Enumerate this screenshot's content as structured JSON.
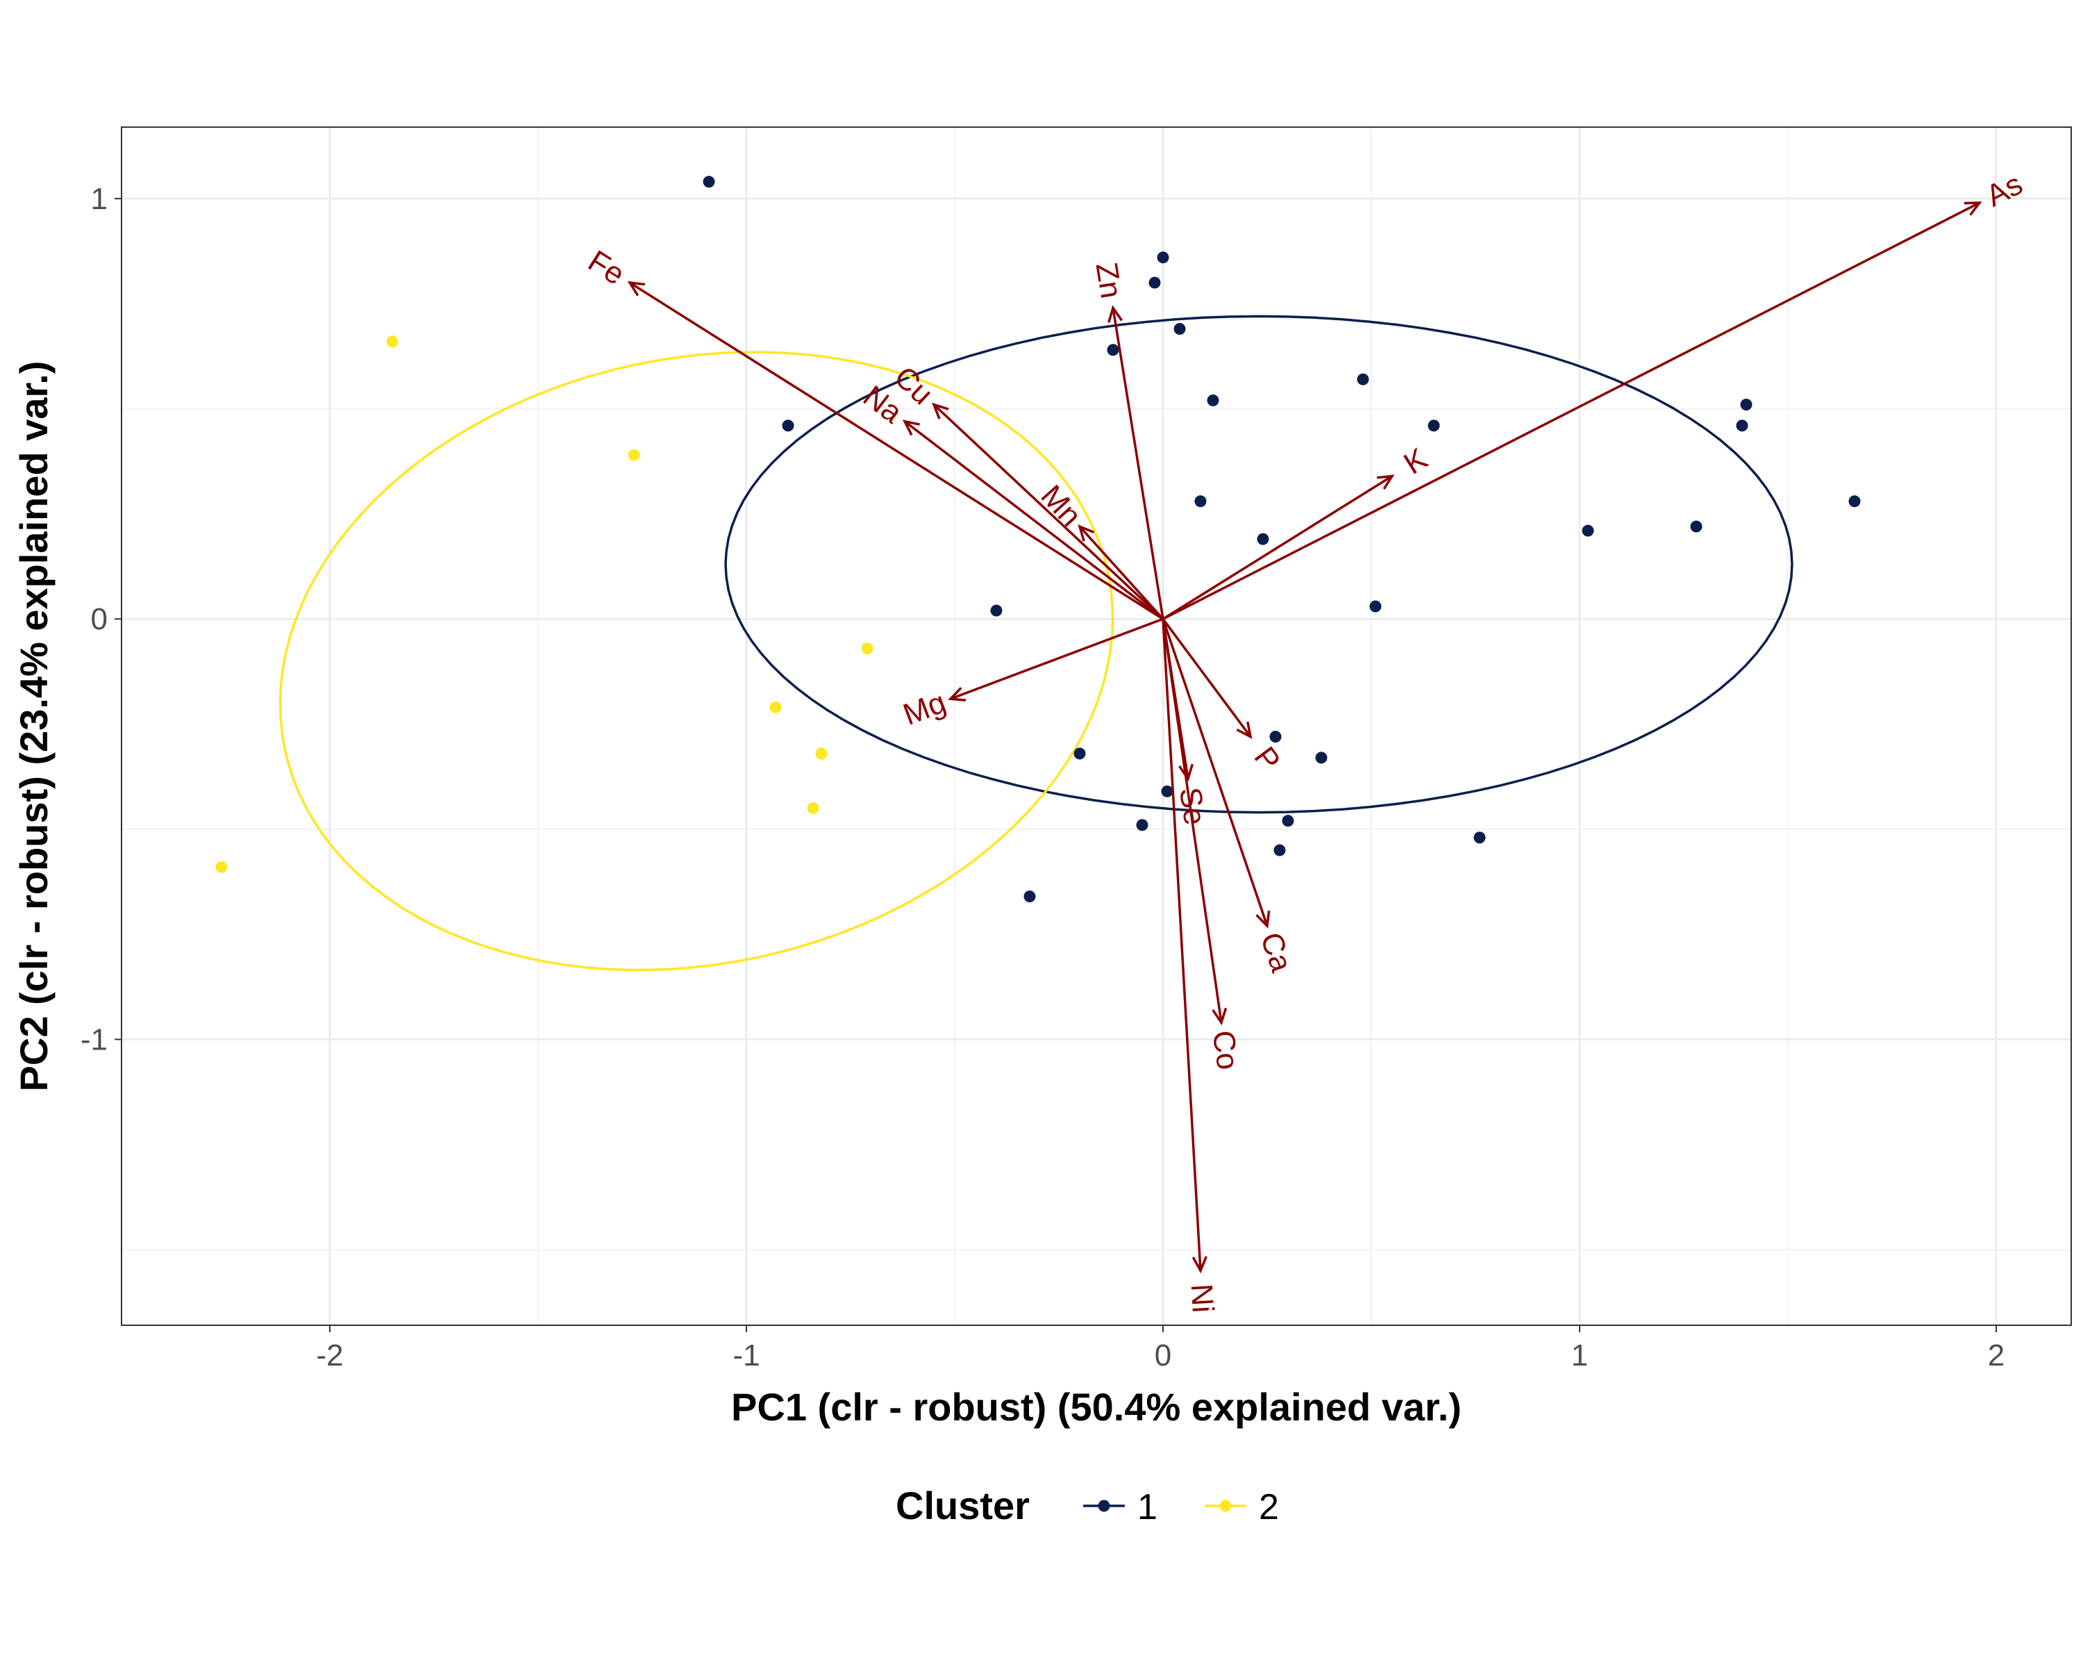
{
  "chart_data": {
    "type": "scatter",
    "xlabel": "PC1 (clr - robust) (50.4% explained var.)",
    "ylabel": "PC2 (clr - robust) (23.4% explained var.)",
    "xlim": [
      -2.5,
      2.18
    ],
    "ylim": [
      -1.68,
      1.17
    ],
    "x_ticks": [
      -2,
      -1,
      0,
      1,
      2
    ],
    "x_tick_labels": [
      "-2",
      "-1",
      "0",
      "1",
      "2"
    ],
    "y_ticks": [
      -1,
      0,
      1
    ],
    "y_tick_labels": [
      "-1",
      "0",
      "1"
    ],
    "grid": true,
    "legend": {
      "title": "Cluster",
      "position": "bottom",
      "entries": [
        {
          "label": "1",
          "color": "#0b1f4d"
        },
        {
          "label": "2",
          "color": "#fde725"
        }
      ]
    },
    "series": [
      {
        "name": "1",
        "color": "#0b1f4d",
        "points": [
          [
            -1.09,
            1.04
          ],
          [
            0.0,
            0.86
          ],
          [
            -0.02,
            0.8
          ],
          [
            0.04,
            0.69
          ],
          [
            -0.12,
            0.64
          ],
          [
            0.12,
            0.52
          ],
          [
            0.48,
            0.57
          ],
          [
            0.65,
            0.46
          ],
          [
            1.39,
            0.46
          ],
          [
            1.4,
            0.51
          ],
          [
            -0.9,
            0.46
          ],
          [
            0.09,
            0.28
          ],
          [
            0.24,
            0.19
          ],
          [
            1.02,
            0.21
          ],
          [
            1.28,
            0.22
          ],
          [
            1.66,
            0.28
          ],
          [
            0.51,
            0.03
          ],
          [
            -0.4,
            0.02
          ],
          [
            -0.2,
            -0.32
          ],
          [
            0.27,
            -0.28
          ],
          [
            0.38,
            -0.33
          ],
          [
            0.01,
            -0.41
          ],
          [
            -0.05,
            -0.49
          ],
          [
            0.3,
            -0.48
          ],
          [
            0.28,
            -0.55
          ],
          [
            0.76,
            -0.52
          ],
          [
            -0.32,
            -0.66
          ]
        ],
        "ellipse": {
          "cx": 0.23,
          "cy": 0.13,
          "rx": 1.28,
          "ry": 0.59,
          "angle_deg": 0
        }
      },
      {
        "name": "2",
        "color": "#fde725",
        "points": [
          [
            -1.85,
            0.66
          ],
          [
            -1.27,
            0.39
          ],
          [
            -0.71,
            -0.07
          ],
          [
            -0.93,
            -0.21
          ],
          [
            -0.82,
            -0.32
          ],
          [
            -0.84,
            -0.45
          ],
          [
            -2.26,
            -0.59
          ]
        ],
        "ellipse": {
          "cx": -1.12,
          "cy": -0.1,
          "rx": 1.01,
          "ry": 0.72,
          "angle_deg": 12
        }
      }
    ],
    "loadings": {
      "color": "#8b0000",
      "arrows": [
        {
          "label": "As",
          "x": 1.96,
          "y": 0.99
        },
        {
          "label": "Fe",
          "x": -1.28,
          "y": 0.8
        },
        {
          "label": "Zn",
          "x": -0.12,
          "y": 0.74
        },
        {
          "label": "Cu",
          "x": -0.55,
          "y": 0.51
        },
        {
          "label": "Na",
          "x": -0.62,
          "y": 0.47
        },
        {
          "label": "Mn",
          "x": -0.2,
          "y": 0.22
        },
        {
          "label": "K",
          "x": 0.55,
          "y": 0.34
        },
        {
          "label": "Mg",
          "x": -0.51,
          "y": -0.19
        },
        {
          "label": "P",
          "x": 0.21,
          "y": -0.28
        },
        {
          "label": "Se",
          "x": 0.06,
          "y": -0.38
        },
        {
          "label": "Ca",
          "x": 0.25,
          "y": -0.73
        },
        {
          "label": "Co",
          "x": 0.14,
          "y": -0.96
        },
        {
          "label": "Ni",
          "x": 0.09,
          "y": -1.55
        }
      ]
    }
  }
}
